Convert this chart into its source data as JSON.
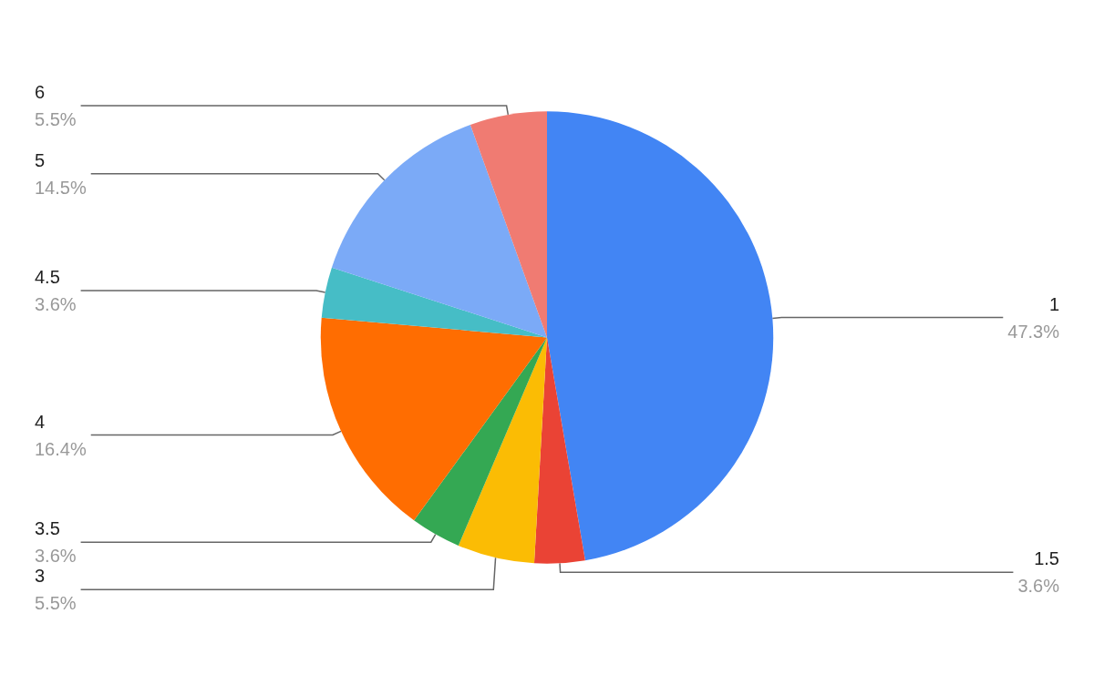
{
  "chart_data": {
    "type": "pie",
    "categories": [
      "1",
      "1.5",
      "3",
      "3.5",
      "4",
      "4.5",
      "5",
      "6"
    ],
    "values": [
      47.3,
      3.6,
      5.5,
      3.6,
      16.4,
      3.6,
      14.5,
      5.5
    ],
    "value_labels": [
      "47.3%",
      "3.6%",
      "5.5%",
      "3.6%",
      "16.4%",
      "3.6%",
      "14.5%",
      "5.5%"
    ],
    "colors": [
      "#4285f4",
      "#ea4335",
      "#fbbc04",
      "#34a853",
      "#ff6d01",
      "#46bdc6",
      "#7baaf7",
      "#f07b72"
    ],
    "legend": false
  }
}
